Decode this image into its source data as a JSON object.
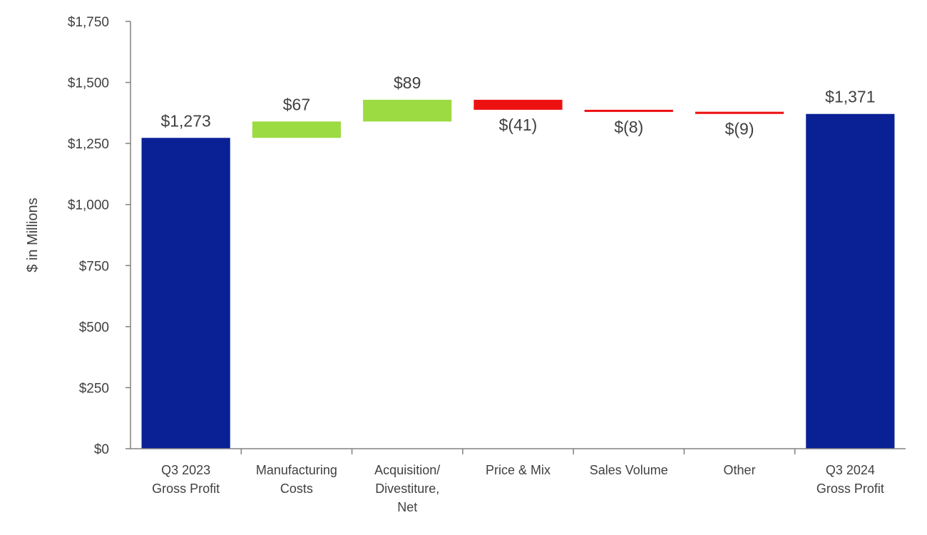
{
  "chart_data": {
    "type": "waterfall",
    "ylabel": "$ in Millions",
    "ylim": [
      0,
      1750
    ],
    "ytick_values": [
      0,
      250,
      500,
      750,
      1000,
      1250,
      1500,
      1750
    ],
    "ytick_labels": [
      "$0",
      "$250",
      "$500",
      "$750",
      "$1,000",
      "$1,250",
      "$1,500",
      "$1,750"
    ],
    "categories": [
      [
        "Q3 2023",
        "Gross Profit"
      ],
      [
        "Manufacturing",
        "Costs"
      ],
      [
        "Acquisition/",
        "Divestiture,",
        "Net"
      ],
      [
        "Price & Mix"
      ],
      [
        "Sales Volume"
      ],
      [
        "Other"
      ],
      [
        "Q3 2024",
        "Gross Profit"
      ]
    ],
    "values": [
      1273,
      67,
      89,
      -41,
      -8,
      -9,
      1371
    ],
    "kinds": [
      "total",
      "delta",
      "delta",
      "delta",
      "delta",
      "delta",
      "total"
    ],
    "labels": [
      "$1,273",
      "$67",
      "$89",
      "$(41)",
      "$(8)",
      "$(9)",
      "$1,371"
    ],
    "colors": {
      "total": "#0a2195",
      "increase": "#9ddb42",
      "decrease": "#ee1111",
      "axis": "#808080",
      "text": "#404040"
    }
  }
}
